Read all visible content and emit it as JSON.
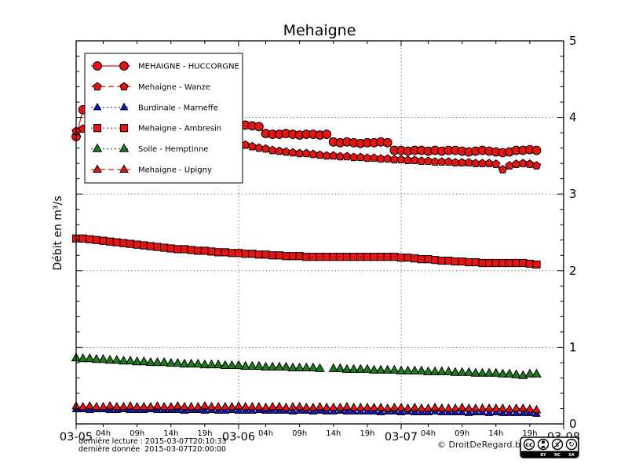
{
  "title": "Mehaigne",
  "ylabel": "Débit en m³/s",
  "footer": {
    "line1": "dernière lecture : 2015-03-07T20:10:33",
    "line2": "dernière donnée  2015-03-07T20:00:00"
  },
  "copyright": "© DroitDeRegard.be",
  "cc_badge": {
    "by": "BY",
    "nc": "NC",
    "sa": "SA"
  },
  "chart_data": {
    "type": "line",
    "title": "Mehaigne",
    "ylabel": "Débit en m³/s",
    "ylim": [
      0,
      5
    ],
    "xlim": [
      0,
      72
    ],
    "x_unit": "hours since 2015-03-05 00:00, hourly points",
    "x_start_hour": 0,
    "x_step_hours": 1,
    "grid": {
      "h": [
        1,
        2,
        3,
        4
      ],
      "v": [
        24,
        48
      ]
    },
    "yticks": [
      0,
      1,
      2,
      3,
      4,
      5
    ],
    "x_major_ticks": [
      {
        "pos": 0,
        "label": "03-05"
      },
      {
        "pos": 24,
        "label": "03-06"
      },
      {
        "pos": 48,
        "label": "03-07"
      },
      {
        "pos": 72,
        "label": "03-08"
      }
    ],
    "x_minor_labels": [
      {
        "pos": 4,
        "label": "04h"
      },
      {
        "pos": 9,
        "label": "09h"
      },
      {
        "pos": 14,
        "label": "14h"
      },
      {
        "pos": 19,
        "label": "19h"
      },
      {
        "pos": 28,
        "label": "04h"
      },
      {
        "pos": 33,
        "label": "09h"
      },
      {
        "pos": 38,
        "label": "14h"
      },
      {
        "pos": 43,
        "label": "19h"
      },
      {
        "pos": 52,
        "label": "04h"
      },
      {
        "pos": 57,
        "label": "09h"
      },
      {
        "pos": 62,
        "label": "14h"
      },
      {
        "pos": 67,
        "label": "19h"
      }
    ],
    "legend_position": "upper left",
    "series": [
      {
        "name": "MEHAIGNE - HUCCORGNE",
        "color": "#e81313",
        "marker": "circle",
        "line": "solid",
        "size": 5.4,
        "values": [
          3.75,
          4.1,
          4.15,
          4.05,
          4.0,
          3.96,
          3.93,
          3.9,
          3.87,
          3.85,
          3.82,
          3.8,
          3.77,
          3.75,
          3.72,
          3.7,
          3.68,
          3.66,
          3.64,
          3.62,
          3.6,
          3.58,
          3.55,
          3.5,
          3.88,
          3.9,
          3.89,
          3.88,
          3.79,
          3.78,
          3.78,
          3.79,
          3.78,
          3.77,
          3.78,
          3.78,
          3.77,
          3.78,
          3.68,
          3.67,
          3.68,
          3.67,
          3.66,
          3.67,
          3.67,
          3.68,
          3.67,
          3.57,
          3.57,
          3.56,
          3.57,
          3.57,
          3.56,
          3.57,
          3.56,
          3.57,
          3.57,
          3.56,
          3.55,
          3.56,
          3.57,
          3.56,
          3.55,
          3.54,
          3.55,
          3.57,
          3.57,
          3.58,
          3.57
        ]
      },
      {
        "name": "Mehaigne - Wanze",
        "color": "#e81313",
        "marker": "pentagon",
        "line": "dashed",
        "size": 5.3,
        "values": [
          3.82,
          3.85,
          3.83,
          3.8,
          3.78,
          3.76,
          3.75,
          3.73,
          3.72,
          3.7,
          3.69,
          3.68,
          3.67,
          3.66,
          3.65,
          3.64,
          3.63,
          3.62,
          3.61,
          3.6,
          3.59,
          3.58,
          3.57,
          3.68,
          3.7,
          3.64,
          3.62,
          3.6,
          3.59,
          3.57,
          3.56,
          3.55,
          3.54,
          3.53,
          3.53,
          3.52,
          3.51,
          3.5,
          3.5,
          3.49,
          3.49,
          3.48,
          3.48,
          3.47,
          3.47,
          3.46,
          3.46,
          3.45,
          3.45,
          3.44,
          3.44,
          3.43,
          3.43,
          3.42,
          3.42,
          3.42,
          3.41,
          3.41,
          3.41,
          3.4,
          3.4,
          3.4,
          3.39,
          3.32,
          3.37,
          3.39,
          3.4,
          3.39,
          3.37
        ]
      },
      {
        "name": "Burdinale - Marneffe",
        "color": "#1212d6",
        "marker": "triangle",
        "line": "dotted",
        "size": 5.0,
        "values": [
          0.19,
          0.19,
          0.18,
          0.19,
          0.19,
          0.18,
          0.18,
          0.19,
          0.18,
          0.18,
          0.18,
          0.19,
          0.18,
          0.18,
          0.18,
          0.18,
          0.17,
          0.18,
          0.18,
          0.17,
          0.18,
          0.17,
          0.17,
          0.18,
          0.17,
          0.17,
          0.17,
          0.18,
          0.17,
          0.17,
          0.17,
          0.17,
          0.16,
          0.17,
          0.17,
          0.16,
          0.17,
          0.16,
          0.16,
          0.17,
          0.16,
          0.16,
          0.16,
          0.16,
          0.16,
          0.15,
          0.16,
          0.16,
          0.15,
          0.16,
          0.15,
          0.15,
          0.15,
          0.16,
          0.15,
          0.15,
          0.15,
          0.15,
          0.14,
          0.15,
          0.15,
          0.14,
          0.15,
          0.14,
          0.14,
          0.14,
          0.14,
          0.14,
          0.13
        ]
      },
      {
        "name": "Mehaigne - Ambresin",
        "color": "#e81313",
        "marker": "square",
        "line": "dotted",
        "size": 4.6,
        "values": [
          2.42,
          2.42,
          2.41,
          2.4,
          2.39,
          2.38,
          2.37,
          2.36,
          2.35,
          2.34,
          2.33,
          2.32,
          2.31,
          2.3,
          2.29,
          2.28,
          2.28,
          2.27,
          2.26,
          2.26,
          2.25,
          2.24,
          2.24,
          2.23,
          2.23,
          2.22,
          2.22,
          2.21,
          2.21,
          2.2,
          2.2,
          2.19,
          2.19,
          2.19,
          2.18,
          2.18,
          2.18,
          2.18,
          2.18,
          2.18,
          2.18,
          2.18,
          2.18,
          2.18,
          2.18,
          2.18,
          2.18,
          2.18,
          2.17,
          2.17,
          2.16,
          2.15,
          2.15,
          2.14,
          2.13,
          2.13,
          2.12,
          2.12,
          2.11,
          2.11,
          2.1,
          2.1,
          2.1,
          2.1,
          2.1,
          2.1,
          2.1,
          2.09,
          2.08
        ]
      },
      {
        "name": "Soile - Hemptinne",
        "color": "#1d7c1d",
        "marker": "triangle",
        "line": "dotted",
        "size": 6.0,
        "values": [
          0.86,
          0.85,
          0.85,
          0.84,
          0.84,
          0.83,
          0.83,
          0.82,
          0.82,
          0.81,
          0.81,
          0.8,
          0.8,
          0.8,
          0.79,
          0.79,
          0.78,
          0.78,
          0.78,
          0.77,
          0.77,
          0.77,
          0.76,
          0.76,
          0.76,
          0.75,
          0.75,
          0.75,
          0.74,
          0.74,
          0.74,
          0.74,
          0.73,
          0.73,
          0.73,
          0.73,
          0.72,
          null,
          0.72,
          0.72,
          0.71,
          0.71,
          0.71,
          0.71,
          0.7,
          0.7,
          0.7,
          0.7,
          0.69,
          0.69,
          0.69,
          0.69,
          0.68,
          0.68,
          0.68,
          0.68,
          0.67,
          0.67,
          0.67,
          0.66,
          0.66,
          0.66,
          0.66,
          0.65,
          0.65,
          0.64,
          0.63,
          0.65,
          0.65
        ]
      },
      {
        "name": "Mehaigne - Upigny",
        "color": "#e81313",
        "marker": "triangle",
        "line": "dashed",
        "size": 5.6,
        "values": [
          0.23,
          0.22,
          0.23,
          0.22,
          0.22,
          0.23,
          0.22,
          0.22,
          0.23,
          0.22,
          0.22,
          0.22,
          0.23,
          0.22,
          0.22,
          0.23,
          0.22,
          0.22,
          0.22,
          0.23,
          0.22,
          0.22,
          0.22,
          0.22,
          0.23,
          0.22,
          0.22,
          0.22,
          0.21,
          0.22,
          0.22,
          0.21,
          0.22,
          0.22,
          0.21,
          0.21,
          0.22,
          0.21,
          0.21,
          0.21,
          0.22,
          0.21,
          0.21,
          0.21,
          0.21,
          0.21,
          0.2,
          0.21,
          0.21,
          0.2,
          0.21,
          0.2,
          0.2,
          0.21,
          0.2,
          0.2,
          0.2,
          0.21,
          0.2,
          0.2,
          0.2,
          0.2,
          0.2,
          0.2,
          0.19,
          0.2,
          0.2,
          0.19,
          0.18
        ]
      }
    ]
  }
}
